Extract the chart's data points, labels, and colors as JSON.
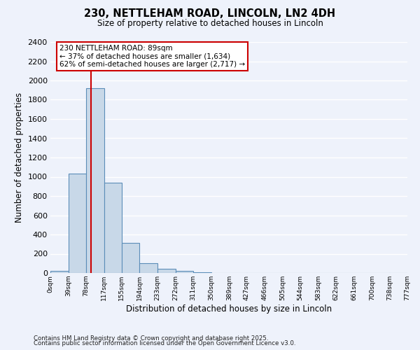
{
  "title": "230, NETTLEHAM ROAD, LINCOLN, LN2 4DH",
  "subtitle": "Size of property relative to detached houses in Lincoln",
  "xlabel": "Distribution of detached houses by size in Lincoln",
  "ylabel": "Number of detached properties",
  "bin_labels": [
    "0sqm",
    "39sqm",
    "78sqm",
    "117sqm",
    "155sqm",
    "194sqm",
    "233sqm",
    "272sqm",
    "311sqm",
    "350sqm",
    "389sqm",
    "427sqm",
    "466sqm",
    "505sqm",
    "544sqm",
    "583sqm",
    "622sqm",
    "661sqm",
    "700sqm",
    "738sqm",
    "777sqm"
  ],
  "bin_edges": [
    0,
    39,
    78,
    117,
    155,
    194,
    233,
    272,
    311,
    350,
    389,
    427,
    466,
    505,
    544,
    583,
    622,
    661,
    700,
    738,
    777
  ],
  "bar_heights": [
    20,
    1030,
    1920,
    940,
    310,
    105,
    45,
    20,
    5,
    0,
    0,
    0,
    0,
    0,
    0,
    0,
    0,
    0,
    0,
    0
  ],
  "bar_color": "#c8d8e8",
  "bar_edge_color": "#5b8db8",
  "vline_x": 89,
  "vline_color": "#cc0000",
  "annotation_line1": "230 NETTLEHAM ROAD: 89sqm",
  "annotation_line2": "← 37% of detached houses are smaller (1,634)",
  "annotation_line3": "62% of semi-detached houses are larger (2,717) →",
  "annotation_box_color": "#ffffff",
  "annotation_box_edge": "#cc0000",
  "ylim": [
    0,
    2400
  ],
  "yticks": [
    0,
    200,
    400,
    600,
    800,
    1000,
    1200,
    1400,
    1600,
    1800,
    2000,
    2200,
    2400
  ],
  "background_color": "#eef2fb",
  "grid_color": "#ffffff",
  "footer1": "Contains HM Land Registry data © Crown copyright and database right 2025.",
  "footer2": "Contains public sector information licensed under the Open Government Licence v3.0."
}
